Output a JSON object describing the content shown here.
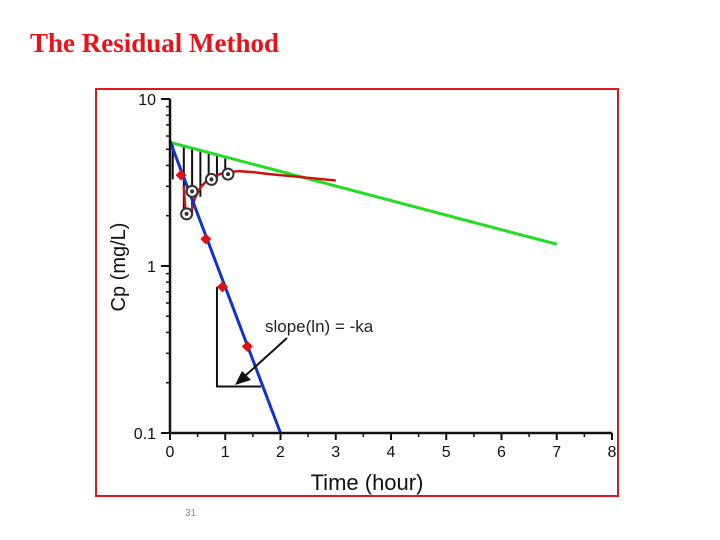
{
  "slide": {
    "title": "The Residual Method",
    "page_number": "31"
  },
  "chart_data": {
    "type": "line",
    "xlabel": "Time (hour)",
    "ylabel": "Cp (mg/L)",
    "xlim": [
      0,
      8
    ],
    "ylim": [
      0.1,
      10
    ],
    "y_scale": "log",
    "x_ticks": [
      "0",
      "1",
      "2",
      "3",
      "4",
      "5",
      "6",
      "7",
      "8"
    ],
    "y_ticks": [
      {
        "value": 10,
        "label": "10"
      },
      {
        "value": 1,
        "label": "1"
      },
      {
        "value": 0.1,
        "label": "0.1"
      }
    ],
    "grid": false,
    "annotation": "slope(ln) = -ka",
    "colors": {
      "elimination_line": "#22dd22",
      "observed_curve": "#cc1111",
      "absorption_line": "#1133cc",
      "residual_points": "#dd1111",
      "frame": "#e8141a"
    },
    "series": [
      {
        "key": "elimination_line",
        "marker": "line",
        "x": [
          0,
          7
        ],
        "y": [
          5.5,
          1.35
        ]
      },
      {
        "key": "observed_curve",
        "marker": "line",
        "x": [
          0.25,
          0.28,
          0.32,
          0.38,
          0.45,
          0.55,
          0.65,
          0.75,
          0.9,
          1.05,
          1.25,
          1.5,
          1.8,
          2.2,
          2.6,
          3.0
        ],
        "y": [
          3.0,
          2.15,
          1.95,
          2.1,
          2.55,
          2.95,
          3.2,
          3.35,
          3.55,
          3.65,
          3.7,
          3.65,
          3.55,
          3.45,
          3.35,
          3.25
        ]
      },
      {
        "key": "observed_points",
        "marker": "circle",
        "x": [
          0.3,
          0.4,
          0.75,
          1.05
        ],
        "y": [
          2.05,
          2.8,
          3.3,
          3.55
        ]
      },
      {
        "key": "absorption_line",
        "marker": "line",
        "x": [
          0,
          2.0
        ],
        "y": [
          5.6,
          0.1
        ]
      },
      {
        "key": "residual_points",
        "marker": "diamond",
        "x": [
          0.2,
          0.65,
          0.95,
          1.4
        ],
        "y": [
          3.5,
          1.45,
          0.75,
          0.33
        ]
      }
    ],
    "residual_verticals": {
      "x": [
        0.05,
        0.25,
        0.4,
        0.55,
        0.7,
        0.85,
        1.0
      ],
      "y_top": [
        5.4,
        5.2,
        5.0,
        4.85,
        4.7,
        4.55,
        4.4
      ],
      "y_bottom": [
        3.3,
        2.1,
        2.0,
        2.6,
        3.1,
        3.3,
        3.5
      ]
    },
    "slope_triangle": {
      "x": [
        0.85,
        0.85,
        1.65
      ],
      "y": [
        0.75,
        0.19,
        0.19
      ]
    }
  }
}
